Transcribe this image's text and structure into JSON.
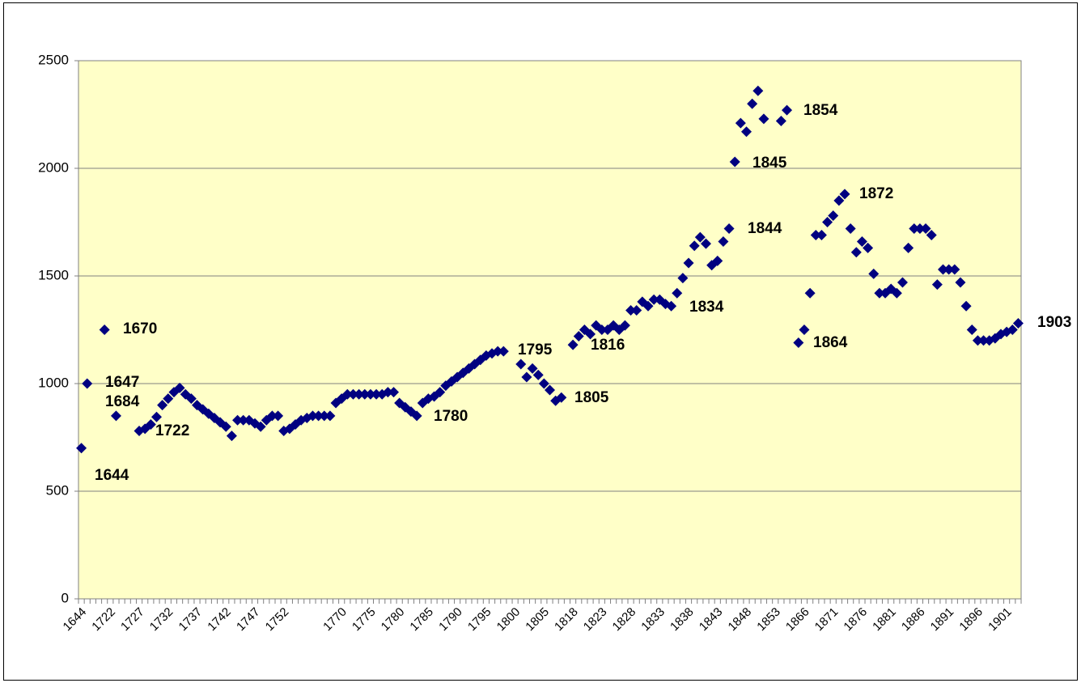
{
  "chart_data": {
    "type": "scatter",
    "categories": [
      "1644",
      null,
      null,
      null,
      null,
      "1722",
      null,
      null,
      null,
      null,
      "1727",
      null,
      null,
      null,
      null,
      "1732",
      null,
      null,
      null,
      null,
      "1737",
      null,
      null,
      null,
      null,
      "1742",
      null,
      null,
      null,
      null,
      "1747",
      null,
      null,
      null,
      null,
      "1752",
      null,
      null,
      null,
      null,
      null,
      null,
      null,
      null,
      null,
      "1770",
      null,
      null,
      null,
      null,
      "1775",
      null,
      null,
      null,
      null,
      "1780",
      null,
      null,
      null,
      null,
      "1785",
      null,
      null,
      null,
      null,
      "1790",
      null,
      null,
      null,
      null,
      "1795",
      null,
      null,
      null,
      null,
      "1800",
      null,
      null,
      null,
      null,
      "1805",
      null,
      null,
      null,
      null,
      "1818",
      null,
      null,
      null,
      null,
      "1823",
      null,
      null,
      null,
      null,
      "1828",
      null,
      null,
      null,
      null,
      "1833",
      null,
      null,
      null,
      null,
      "1838",
      null,
      null,
      null,
      null,
      "1843",
      null,
      null,
      null,
      null,
      "1848",
      null,
      null,
      null,
      null,
      "1853",
      null,
      null,
      null,
      null,
      "1866",
      null,
      null,
      null,
      null,
      "1871",
      null,
      null,
      null,
      null,
      "1876",
      null,
      null,
      null,
      null,
      "1881",
      null,
      null,
      null,
      null,
      "1886",
      null,
      null,
      null,
      null,
      "1891",
      null,
      null,
      null,
      null,
      "1896",
      null,
      null,
      null,
      null,
      "1901",
      null,
      null
    ],
    "values": [
      700,
      1000,
      null,
      null,
      1250,
      null,
      850,
      null,
      null,
      null,
      780,
      790,
      810,
      845,
      900,
      930,
      960,
      980,
      950,
      930,
      900,
      880,
      860,
      840,
      820,
      800,
      757,
      830,
      830,
      830,
      815,
      800,
      830,
      850,
      850,
      780,
      790,
      810,
      830,
      840,
      850,
      850,
      850,
      850,
      910,
      930,
      950,
      950,
      950,
      950,
      950,
      950,
      950,
      960,
      960,
      910,
      890,
      870,
      850,
      910,
      930,
      940,
      960,
      990,
      1010,
      1030,
      1050,
      1070,
      1090,
      1110,
      1130,
      1140,
      1150,
      1150,
      null,
      null,
      1090,
      1030,
      1070,
      1040,
      1000,
      970,
      920,
      935,
      null,
      1180,
      1220,
      1250,
      1230,
      1270,
      1250,
      1250,
      1270,
      1250,
      1270,
      1340,
      1340,
      1380,
      1360,
      1390,
      1390,
      1370,
      1360,
      1420,
      1490,
      1560,
      1640,
      1680,
      1650,
      1550,
      1570,
      1660,
      1720,
      2030,
      2210,
      2170,
      2300,
      2360,
      2230,
      null,
      null,
      2220,
      2270,
      null,
      1190,
      1250,
      1420,
      1690,
      1690,
      1750,
      1780,
      1850,
      1880,
      1720,
      1610,
      1660,
      1630,
      1510,
      1420,
      1420,
      1440,
      1420,
      1470,
      1630,
      1720,
      1720,
      1720,
      1690,
      1460,
      1530,
      1530,
      1530,
      1470,
      1360,
      1250,
      1200,
      1200,
      1200,
      1210,
      1230,
      1240,
      1250,
      1280
    ],
    "color": "#000080",
    "plot_background": "#ffffc8",
    "ylim": [
      0,
      2500
    ],
    "yticks": [
      0,
      500,
      1000,
      1500,
      2000,
      2500
    ],
    "grid": true,
    "annotations": [
      "1670",
      "1647",
      "1684",
      "1722",
      "1644",
      "1780",
      "1795",
      "1816",
      "1805",
      "1834",
      "1844",
      "1845",
      "1854",
      "1872",
      "1864",
      "1903"
    ]
  }
}
